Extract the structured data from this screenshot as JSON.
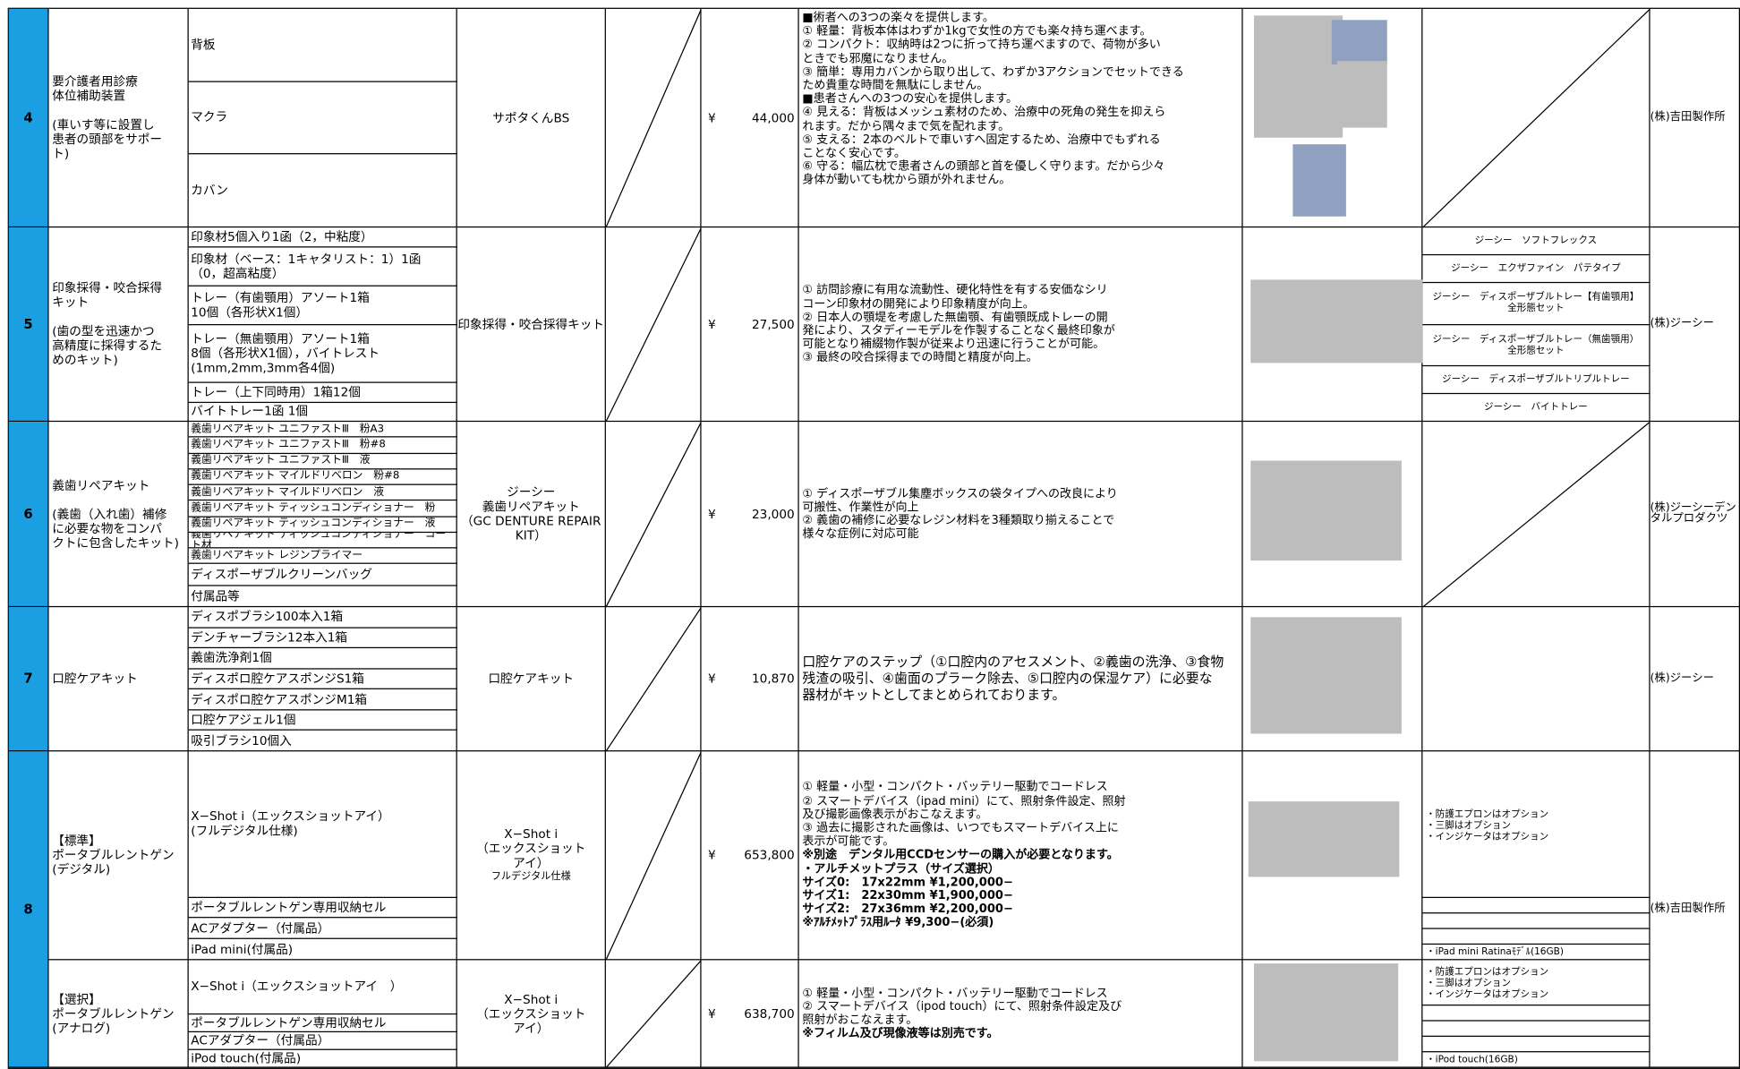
{
  "table": {
    "rows": [
      {
        "number": "4",
        "maker": "(株)吉田製作所",
        "parts": [
          {
            "name": "要介護者用診療\n体位補助装置\n\n(車いす等に設置し\n患者の頭部をサポー\nト)",
            "items": [
              "背板",
              "マクラ",
              "カバン"
            ],
            "product": "サポタくんBS",
            "currency": "¥",
            "price": "44,000",
            "description": [
              {
                "text": "■術者への3つの楽々を提供します。"
              },
              {
                "text": "①  軽量：背板本体はわずか1kgで女性の方でも楽々持ち運べます。"
              },
              {
                "text": "②  コンパクト：収納時は2つに折って持ち運べますので、荷物が多い\n    ときでも邪魔になりません。"
              },
              {
                "text": "③  簡単：専用カバンから取り出して、わずか3アクションでセットできる\n    ため貴重な時間を無駄にしません。"
              },
              {
                "text": "■患者さんへの3つの安心を提供します。"
              },
              {
                "text": "④  見える：背板はメッシュ素材のため、治療中の死角の発生を抑えら\n    れます。だから隅々まで気を配れます。"
              },
              {
                "text": "⑤  支える：2本のベルトで車いすへ固定するため、治療中でもずれる\n    ことなく安心です。"
              },
              {
                "text": "⑥  守る：幅広枕で患者さんの頭部と首を優しく守ります。だから少々\n    身体が動いても枕から頭が外れません。"
              }
            ]
          }
        ]
      },
      {
        "number": "5",
        "maker": "(株)ジーシー",
        "parts": [
          {
            "name": "印象採得・咬合採得\nキット\n\n(歯の型を迅速かつ\n高精度に採得するた\nめのキット)",
            "items": [
              "印象材5個入り1函（2，中粘度）",
              "印象材（ベース：1キャタリスト：1）1函\n（0，超高粘度）",
              "トレー（有歯顎用）アソート1箱\n10個（各形状X1個）",
              "トレー（無歯顎用）アソート1箱\n8個（各形状X1個），バイトレスト\n(1mm,2mm,3mm各4個)",
              "トレー（上下同時用）1箱12個",
              "バイトトレー1函 1個"
            ],
            "product": "印象採得・咬合採得キット",
            "currency": "¥",
            "price": "27,500",
            "description": [
              {
                "text": "①  訪問診療に有用な流動性、硬化特性を有する安価なシリ\n    コーン印象材の開発により印象精度が向上。"
              },
              {
                "text": "②  日本人の顎堤を考慮した無歯顎、有歯顎既成トレーの開\n    発により、スタディーモデルを作製することなく最終印象が\n    可能となり補綴物作製が従来より迅速に行うことが可能。"
              },
              {
                "text": "③  最終の咬合採得までの時間と精度が向上。"
              }
            ],
            "notes": [
              "ジーシー　ソフトフレックス",
              "ジーシー　エクザファイン　パテタイプ",
              "ジーシー　ディスポーザブルトレー【有歯顎用】\n全形態セット",
              "ジーシー　ディスポーザブルトレー（無歯顎用）\n全形態セット",
              "ジーシー　ディスポーザブルトリプルトレー",
              "ジーシー　バイトトレー"
            ]
          }
        ]
      },
      {
        "number": "6",
        "maker": "(株)ジーシーデン\nタルプロダクツ",
        "parts": [
          {
            "name": "義歯リペアキット\n\n(義歯（入れ歯）補修\nに必要な物をコンパ\nクトに包含したキット)",
            "items": [
              "義歯リペアキット ユニファストⅢ　粉A3",
              "義歯リペアキット ユニファストⅢ　粉#8",
              "義歯リペアキット ユニファストⅢ　液",
              "義歯リペアキット マイルドリベロン　粉#8",
              "義歯リペアキット マイルドリベロン　液",
              "義歯リペアキット ティッシュコンディショナー　粉",
              "義歯リペアキット ティッシュコンディショナー　液",
              "義歯リペアキット ティッシュコンディショナー　コート材",
              "義歯リペアキット レジンプライマー",
              "ディスポーザブルクリーンバッグ",
              "付属品等"
            ],
            "product": "ジーシー\n義歯リペアキット\n（GC DENTURE REPAIR\nKIT）",
            "currency": "¥",
            "price": "23,000",
            "description": [
              {
                "text": "①  ディスポーザブル集塵ボックスの袋タイプへの改良により\n    可搬性、作業性が向上"
              },
              {
                "text": "②  義歯の補修に必要なレジン材料を3種類取り揃えることで\n    様々な症例に対応可能"
              }
            ]
          }
        ]
      },
      {
        "number": "7",
        "maker": "(株)ジーシー",
        "parts": [
          {
            "name": "口腔ケアキット",
            "items": [
              "ディスポブラシ100本入1箱",
              "デンチャーブラシ12本入1箱",
              "義歯洗浄剤1個",
              "ディスポロ腔ケアスポンジS1箱",
              "ディスポロ腔ケアスポンジM1箱",
              "口腔ケアジェル1個",
              "吸引ブラシ10個入"
            ],
            "product": "口腔ケアキット",
            "currency": "¥",
            "price": "10,870",
            "description": [
              {
                "text": "口腔ケアのステップ（①口腔内のアセスメント、②義歯の洗浄、③食物\n残渣の吸引、④歯面のプラーク除去、⑤口腔内の保湿ケア）に必要な\n器材がキットとしてまとめられております。"
              }
            ]
          }
        ]
      },
      {
        "number": "8",
        "maker": "(株)吉田製作所",
        "parts": [
          {
            "name": "【標準】\nポータブルレントゲン\n(デジタル)",
            "items": [
              "X−Shot i（エックスショットアイ）\n(フルデジタル仕様)",
              "ポータブルレントゲン専用収納セル",
              "ACアダプター（付属品）",
              "iPad mini(付属品)"
            ],
            "product": "X−Shot i\n（エックスショット\nアイ）",
            "product_note": "フルデジタル仕様",
            "currency": "¥",
            "price": "653,800",
            "description": [
              {
                "text": "①  軽量・小型・コンパクト・バッテリー駆動でコードレス"
              },
              {
                "text": "②  スマートデバイス（ipad mini）にて、照射条件設定、照射\n    及び撮影画像表示がおこなえます。"
              },
              {
                "text": "③  過去に撮影された画像は、いつでもスマートデバイス上に\n    表示が可能です。"
              },
              {
                "text": "※別途　デンタル用CCDセンサーの購入が必要となります。",
                "bold": true
              },
              {
                "text": "・アルチメットプラス（サイズ選択）",
                "bold": true
              },
              {
                "text": "  サイズ0:　17x22mm ¥1,200,000−\n  サイズ1:　22x30mm ¥1,900,000−\n  サイズ2:　27x36mm ¥2,200,000−\n  ※ｱﾙﾁﾒｯﾄﾌﾟﾗｽ用ﾙｰﾀ  ¥9,300−(必須)",
                "bold": true
              }
            ],
            "notes": [
              "・防護エプロンはオプション\n・三脚はオプション\n・インジケータはオプション",
              "・iPad  mini Ratinaﾓﾃﾞﾙ(16GB)"
            ]
          },
          {
            "name": "【選択】\nポータブルレントゲン\n(アナログ)",
            "items": [
              "X−Shot i（エックスショットアイ　）",
              "ポータブルレントゲン専用収納セル",
              "ACアダプター（付属品）",
              "iPod touch(付属品)"
            ],
            "product": "X−Shot i\n（エックスショット\nアイ）",
            "currency": "¥",
            "price": "638,700",
            "description": [
              {
                "text": "①  軽量・小型・コンパクト・バッテリー駆動でコードレス"
              },
              {
                "text": "②  スマートデバイス（ipod touch）にて、照射条件設定及び\n    照射がおこなえます。"
              },
              {
                "text": "※フィルム及び現像液等は別売です。",
                "bold": true
              }
            ],
            "notes": [
              "・防護エプロンはオプション\n・三脚はオプション\n・インジケータはオプション",
              "・iPod  touch(16GB)"
            ]
          }
        ]
      }
    ]
  }
}
